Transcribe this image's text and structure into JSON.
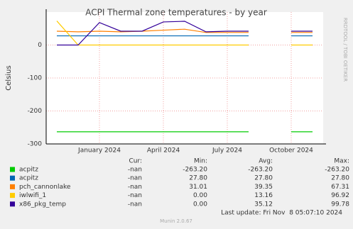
{
  "chart_data": {
    "type": "line",
    "title": "ACPI Thermal zone temperatures - by year",
    "y_label": "Celsius",
    "side_label": "RRDTOOL / TOBI OETIKER",
    "x": [
      "2023-11",
      "2023-12",
      "2024-01",
      "2024-02",
      "2024-03",
      "2024-04",
      "2024-05",
      "2024-06",
      "2024-07",
      "2024-08",
      "2024-09",
      "2024-10",
      "2024-11"
    ],
    "xticks": [
      {
        "value": "2024-01",
        "label": "January 2024"
      },
      {
        "value": "2024-04",
        "label": "April 2024"
      },
      {
        "value": "2024-07",
        "label": "July 2024"
      },
      {
        "value": "2024-10",
        "label": "October 2024"
      }
    ],
    "ylim": [
      -300,
      100
    ],
    "yticks": [
      -300,
      -200,
      -100,
      0
    ],
    "grid": true,
    "series": [
      {
        "name": "acpitz",
        "color": "#00cc00",
        "values": [
          -263.2,
          -263.2,
          -263.2,
          -263.2,
          -263.2,
          -263.2,
          -263.2,
          -263.2,
          -263.2,
          -263.2,
          null,
          -263.2,
          -263.2
        ]
      },
      {
        "name": "acpitz",
        "color": "#0066b3",
        "values": [
          27.8,
          27.8,
          27.8,
          27.8,
          27.8,
          27.8,
          27.8,
          27.8,
          27.8,
          27.8,
          null,
          27.8,
          27.8
        ]
      },
      {
        "name": "pch_cannonlake",
        "color": "#ff8000",
        "values": [
          42,
          40,
          42,
          40,
          42,
          45,
          48,
          38,
          38,
          38,
          null,
          38,
          38
        ]
      },
      {
        "name": "iwlwifi_1",
        "color": "#ffcc00",
        "values": [
          73,
          0,
          0,
          0,
          0,
          0,
          0,
          0,
          0,
          0,
          null,
          0,
          0
        ]
      },
      {
        "name": "x86_pkg_temp",
        "color": "#330099",
        "values": [
          0,
          0,
          68,
          42,
          42,
          70,
          72,
          40,
          42,
          42,
          null,
          42,
          42
        ]
      }
    ],
    "legend_table": {
      "headers": [
        "Cur:",
        "Min:",
        "Avg:",
        "Max:"
      ],
      "rows": [
        [
          "-nan",
          "-263.20",
          "-263.20",
          "-263.20"
        ],
        [
          "-nan",
          "27.80",
          "27.80",
          "27.80"
        ],
        [
          "-nan",
          "31.01",
          "39.35",
          "67.31"
        ],
        [
          "-nan",
          "0.00",
          "13.16",
          "96.92"
        ],
        [
          "-nan",
          "0.00",
          "35.12",
          "99.78"
        ]
      ]
    },
    "last_update": "Last update: Fri Nov  8 05:07:10 2024",
    "footer": "Munin 2.0.67"
  }
}
